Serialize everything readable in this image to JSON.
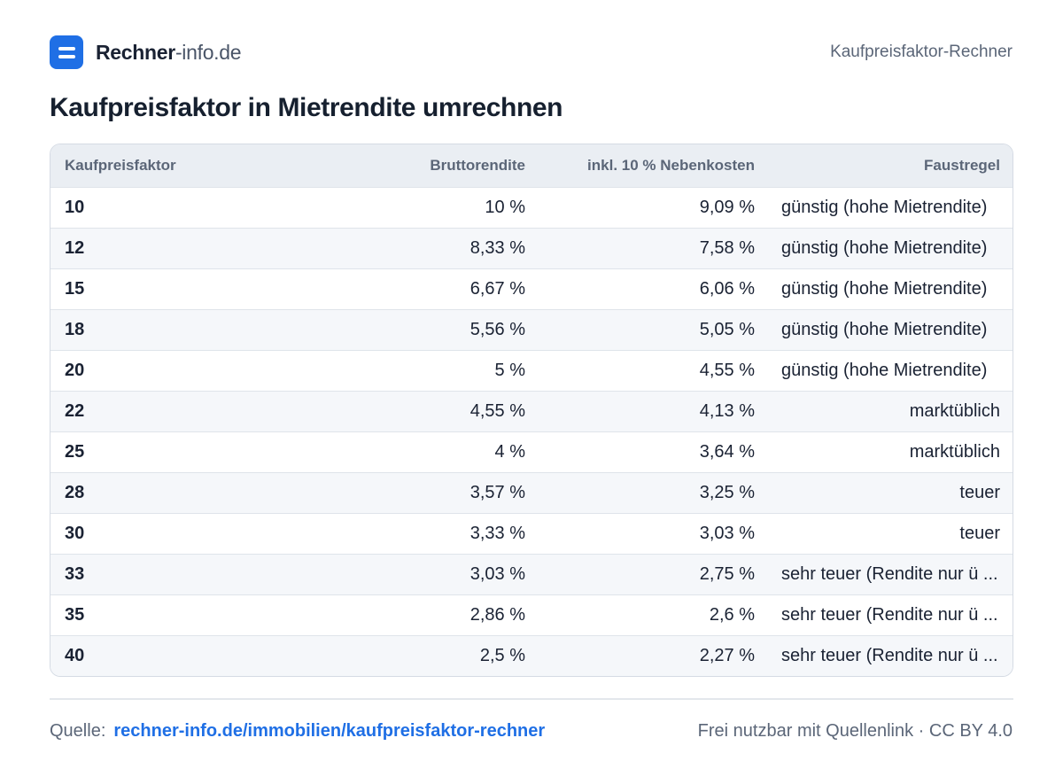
{
  "brand": {
    "name_strong": "Rechner",
    "name_light": "-info.de"
  },
  "header": {
    "page_label": "Kaufpreisfaktor-Rechner"
  },
  "title": "Kaufpreisfaktor in Mietrendite umrechnen",
  "table": {
    "columns": [
      "Kaufpreisfaktor",
      "Bruttorendite",
      "inkl. 10 % Nebenkosten",
      "Faustregel"
    ],
    "rows": [
      {
        "factor": "10",
        "gross": "10 %",
        "incl": "9,09 %",
        "rule": "günstig (hohe Mietrendite)"
      },
      {
        "factor": "12",
        "gross": "8,33 %",
        "incl": "7,58 %",
        "rule": "günstig (hohe Mietrendite)"
      },
      {
        "factor": "15",
        "gross": "6,67 %",
        "incl": "6,06 %",
        "rule": "günstig (hohe Mietrendite)"
      },
      {
        "factor": "18",
        "gross": "5,56 %",
        "incl": "5,05 %",
        "rule": "günstig (hohe Mietrendite)"
      },
      {
        "factor": "20",
        "gross": "5 %",
        "incl": "4,55 %",
        "rule": "günstig (hohe Mietrendite)"
      },
      {
        "factor": "22",
        "gross": "4,55 %",
        "incl": "4,13 %",
        "rule": "marktüblich"
      },
      {
        "factor": "25",
        "gross": "4 %",
        "incl": "3,64 %",
        "rule": "marktüblich"
      },
      {
        "factor": "28",
        "gross": "3,57 %",
        "incl": "3,25 %",
        "rule": "teuer"
      },
      {
        "factor": "30",
        "gross": "3,33 %",
        "incl": "3,03 %",
        "rule": "teuer"
      },
      {
        "factor": "33",
        "gross": "3,03 %",
        "incl": "2,75 %",
        "rule": "sehr teuer (Rendite nur ü ..."
      },
      {
        "factor": "35",
        "gross": "2,86 %",
        "incl": "2,6 %",
        "rule": "sehr teuer (Rendite nur ü ..."
      },
      {
        "factor": "40",
        "gross": "2,5 %",
        "incl": "2,27 %",
        "rule": "sehr teuer (Rendite nur ü ..."
      }
    ]
  },
  "footer": {
    "source_label": "Quelle:",
    "source_link": "rechner-info.de/immobilien/kaufpreisfaktor-rechner",
    "license": "Frei nutzbar mit Quellenlink · CC BY 4.0"
  },
  "colors": {
    "accent": "#1f6fe5",
    "header_bg": "#eaeef3",
    "stripe_bg": "#f5f7fa"
  },
  "icons": {
    "logo": "equals-logo-icon"
  }
}
